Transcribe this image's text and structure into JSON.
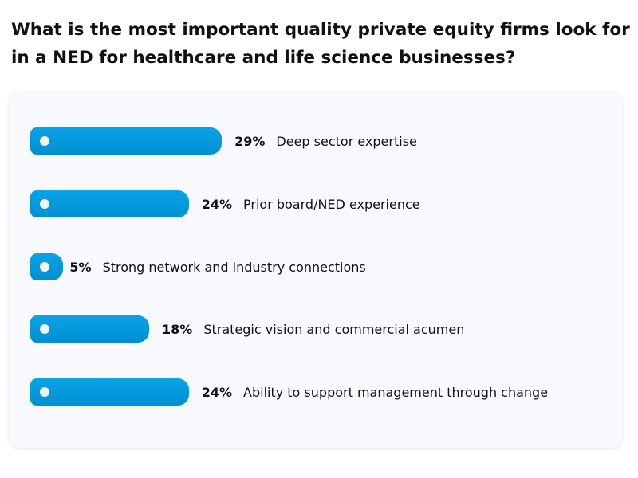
{
  "chart_data": {
    "type": "bar",
    "orientation": "horizontal",
    "title": "What is the most important quality private equity firms look for in a NED for healthcare and life science businesses?",
    "categories": [
      "Deep sector expertise",
      "Prior board/NED experience",
      "Strong network and industry connections",
      "Strategic vision and commercial acumen",
      "Ability to support management through change"
    ],
    "values": [
      29,
      24,
      5,
      18,
      24
    ],
    "value_labels": [
      "29%",
      "24%",
      "5%",
      "18%",
      "24%"
    ],
    "unit": "%",
    "bar_color": "#0098dc",
    "grid": false
  }
}
